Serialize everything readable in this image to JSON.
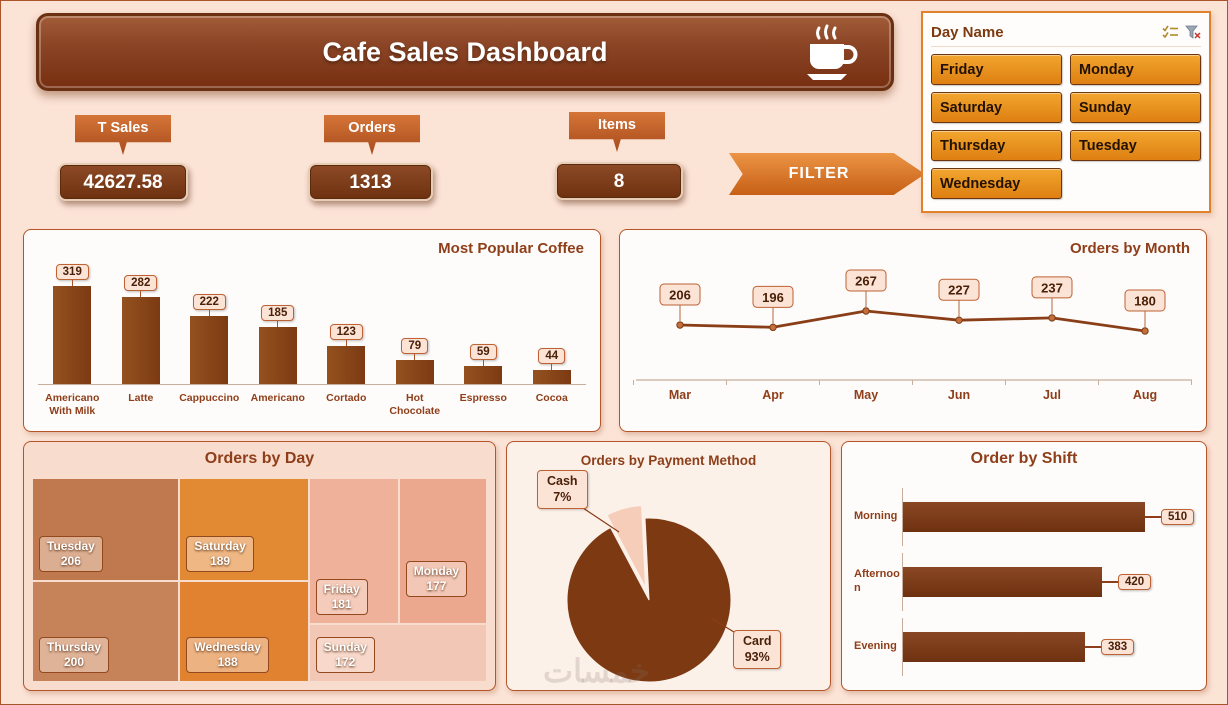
{
  "header": {
    "title": "Cafe Sales Dashboard"
  },
  "kpis": [
    {
      "label": "T Sales",
      "value": "42627.58"
    },
    {
      "label": "Orders",
      "value": "1313"
    },
    {
      "label": "Items",
      "value": "8"
    }
  ],
  "filter_button": "FILTER",
  "slicer": {
    "title": "Day Name",
    "items": [
      "Friday",
      "Monday",
      "Saturday",
      "Sunday",
      "Thursday",
      "Tuesday",
      "Wednesday"
    ]
  },
  "watermark": "خمسات",
  "colors": {
    "primary_brown": "#7C3912",
    "bar_brown": "#8A4520",
    "accent_orange": "#E8921E",
    "background": "#FBE3D6",
    "panel_border": "#B5552A",
    "label_box_bg": "#FBE3D6",
    "label_box_border": "#BE6234"
  },
  "chart_data": [
    {
      "id": "popular_coffee",
      "type": "bar",
      "title": "Most Popular Coffee",
      "categories": [
        "Americano With Milk",
        "Latte",
        "Cappuccino",
        "Americano",
        "Cortado",
        "Hot Chocolate",
        "Espresso",
        "Cocoa"
      ],
      "values": [
        319,
        282,
        222,
        185,
        123,
        79,
        59,
        44
      ],
      "ylim": [
        0,
        319
      ],
      "grid": false,
      "data_labels": true
    },
    {
      "id": "orders_by_month",
      "type": "line",
      "title": "Orders by Month",
      "categories": [
        "Mar",
        "Apr",
        "May",
        "Jun",
        "Jul",
        "Aug"
      ],
      "values": [
        206,
        196,
        267,
        227,
        237,
        180
      ],
      "grid": false,
      "data_labels": true
    },
    {
      "id": "orders_by_day",
      "type": "treemap",
      "title": "Orders by Day",
      "items": [
        {
          "label": "Tuesday",
          "value": 206,
          "color": "#C0794E"
        },
        {
          "label": "Saturday",
          "value": 189,
          "color": "#E28A33"
        },
        {
          "label": "Friday",
          "value": 181,
          "color": "#EFB199"
        },
        {
          "label": "Monday",
          "value": 177,
          "color": "#ECA88E"
        },
        {
          "label": "Thursday",
          "value": 200,
          "color": "#C6835A"
        },
        {
          "label": "Wednesday",
          "value": 188,
          "color": "#E08230"
        },
        {
          "label": "Sunday",
          "value": 172,
          "color": "#F3C7B5"
        }
      ]
    },
    {
      "id": "payment_method",
      "type": "pie",
      "title": "Orders by Payment Method",
      "slices": [
        {
          "label": "Cash",
          "pct": 7,
          "color": "#F5CDB9"
        },
        {
          "label": "Card",
          "pct": 93,
          "color": "#7C3912"
        }
      ]
    },
    {
      "id": "order_by_shift",
      "type": "bar-horizontal",
      "title": "Order by Shift",
      "categories": [
        "Morning",
        "Afternoon",
        "Evening"
      ],
      "values": [
        510,
        420,
        383
      ],
      "data_labels": true
    }
  ]
}
